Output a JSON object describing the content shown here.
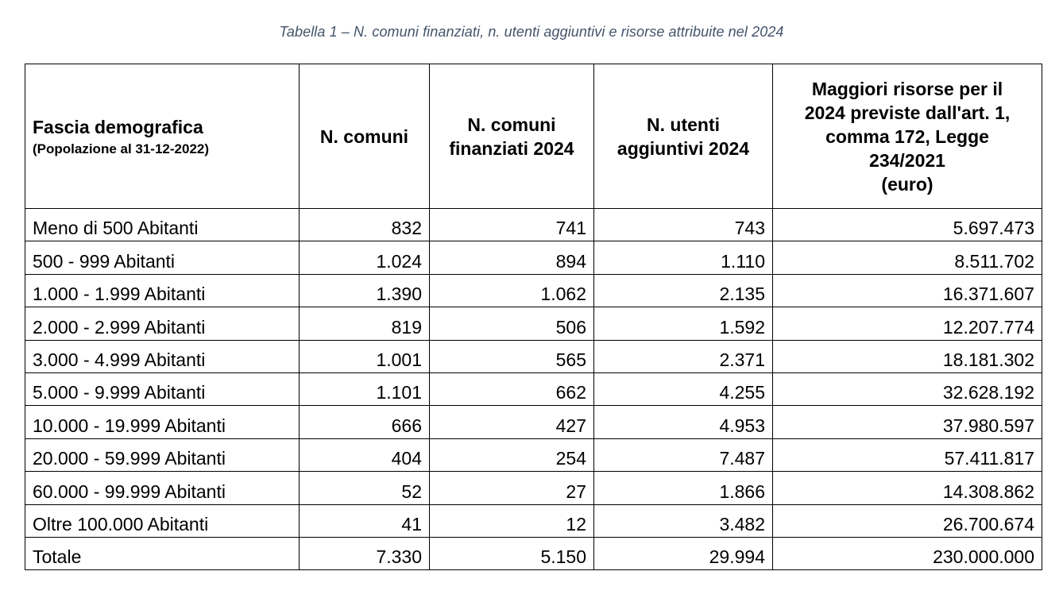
{
  "caption": "Tabella 1 – N. comuni finanziati, n. utenti aggiuntivi e risorse attribuite nel 2024",
  "table": {
    "headers": {
      "fascia_title": "Fascia demografica",
      "fascia_subtitle": "(Popolazione al 31-12-2022)",
      "n_comuni": "N. comuni",
      "n_comuni_finanziati_line1": "N. comuni",
      "n_comuni_finanziati_line2": "finanziati 2024",
      "n_utenti_line1": "N. utenti",
      "n_utenti_line2": "aggiuntivi 2024",
      "risorse_line1": "Maggiori risorse per il",
      "risorse_line2": "2024 previste dall'art. 1,",
      "risorse_line3": "comma 172, Legge",
      "risorse_line4": "234/2021",
      "risorse_line5": "(euro)"
    },
    "rows": [
      {
        "fascia": "Meno di 500 Abitanti",
        "comuni": "832",
        "finanziati": "741",
        "utenti": "743",
        "risorse": "5.697.473"
      },
      {
        "fascia": "500 - 999 Abitanti",
        "comuni": "1.024",
        "finanziati": "894",
        "utenti": "1.110",
        "risorse": "8.511.702"
      },
      {
        "fascia": "1.000 - 1.999 Abitanti",
        "comuni": "1.390",
        "finanziati": "1.062",
        "utenti": "2.135",
        "risorse": "16.371.607"
      },
      {
        "fascia": "2.000 - 2.999 Abitanti",
        "comuni": "819",
        "finanziati": "506",
        "utenti": "1.592",
        "risorse": "12.207.774"
      },
      {
        "fascia": "3.000 - 4.999 Abitanti",
        "comuni": "1.001",
        "finanziati": "565",
        "utenti": "2.371",
        "risorse": "18.181.302"
      },
      {
        "fascia": "5.000 - 9.999 Abitanti",
        "comuni": "1.101",
        "finanziati": "662",
        "utenti": "4.255",
        "risorse": "32.628.192"
      },
      {
        "fascia": "10.000 - 19.999 Abitanti",
        "comuni": "666",
        "finanziati": "427",
        "utenti": "4.953",
        "risorse": "37.980.597"
      },
      {
        "fascia": "20.000 - 59.999 Abitanti",
        "comuni": "404",
        "finanziati": "254",
        "utenti": "7.487",
        "risorse": "57.411.817"
      },
      {
        "fascia": "60.000 - 99.999 Abitanti",
        "comuni": "52",
        "finanziati": "27",
        "utenti": "1.866",
        "risorse": "14.308.862"
      },
      {
        "fascia": "Oltre 100.000 Abitanti",
        "comuni": "41",
        "finanziati": "12",
        "utenti": "3.482",
        "risorse": "26.700.674"
      },
      {
        "fascia": "Totale",
        "comuni": "7.330",
        "finanziati": "5.150",
        "utenti": "29.994",
        "risorse": "230.000.000"
      }
    ]
  },
  "colors": {
    "caption": "#44546a",
    "border": "#000000",
    "text": "#000000",
    "background": "#ffffff"
  }
}
